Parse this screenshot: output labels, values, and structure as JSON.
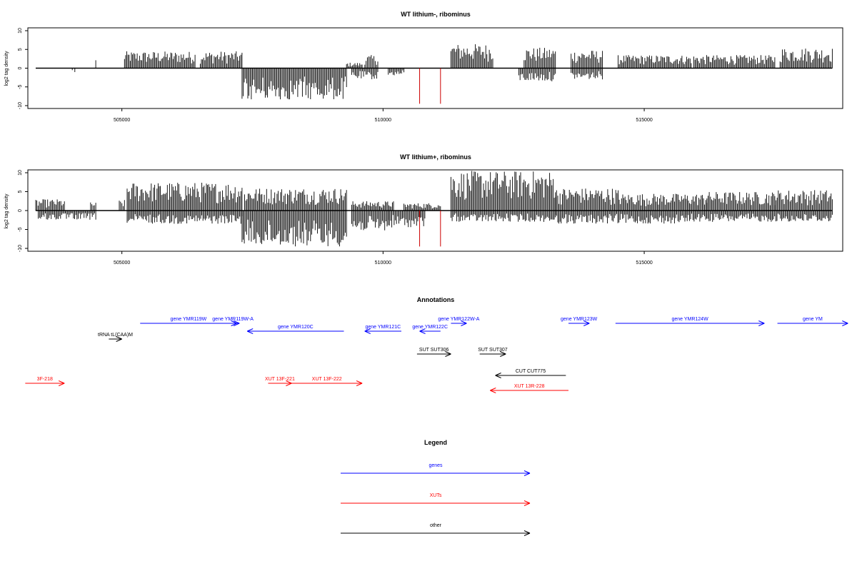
{
  "chart_data": [
    {
      "type": "bar",
      "title": "WT lithium-, ribominus",
      "ylabel": "log2 tag density",
      "xlim": [
        503200,
        518800
      ],
      "ylim": [
        -10,
        10
      ],
      "x_ticks": [
        505000,
        510000,
        515000
      ],
      "y_ticks": [
        -10,
        -5,
        0,
        5,
        10
      ],
      "series": [
        {
          "strand": "plus",
          "color": "#000000",
          "regions": [
            {
              "start": 504500,
              "end": 504500,
              "max": 2.7
            },
            {
              "start": 505050,
              "end": 506400,
              "max": 4.5
            },
            {
              "start": 506500,
              "end": 507300,
              "max": 4.5
            },
            {
              "start": 509300,
              "end": 509600,
              "max": 1.5
            },
            {
              "start": 509650,
              "end": 509900,
              "max": 3.5
            },
            {
              "start": 511300,
              "end": 512100,
              "max": 6.5
            },
            {
              "start": 512700,
              "end": 513300,
              "max": 5.5
            },
            {
              "start": 513600,
              "end": 514200,
              "max": 4.8
            },
            {
              "start": 514500,
              "end": 515900,
              "max": 3.5
            },
            {
              "start": 515950,
              "end": 517500,
              "max": 3.5
            },
            {
              "start": 517600,
              "end": 518600,
              "max": 5.5
            }
          ]
        },
        {
          "strand": "minus",
          "color": "#000000",
          "regions": [
            {
              "start": 504050,
              "end": 504100,
              "min": -1.5
            },
            {
              "start": 507300,
              "end": 509300,
              "min": -8.5
            },
            {
              "start": 509400,
              "end": 509900,
              "min": -3.0
            },
            {
              "start": 510100,
              "end": 510400,
              "min": -2.0
            },
            {
              "start": 512600,
              "end": 513300,
              "min": -3.5
            },
            {
              "start": 513600,
              "end": 514200,
              "min": -3.0
            }
          ]
        },
        {
          "strand": "minus",
          "color": "#cc0000",
          "spikes": [
            {
              "x": 510700,
              "value": -9.5
            },
            {
              "x": 511100,
              "value": -9.5
            }
          ]
        }
      ]
    },
    {
      "type": "bar",
      "title": "WT lithium+, ribominus",
      "ylabel": "log2 tag density",
      "xlim": [
        503200,
        518800
      ],
      "ylim": [
        -10,
        10
      ],
      "x_ticks": [
        505000,
        510000,
        515000
      ],
      "y_ticks": [
        -10,
        -5,
        0,
        5,
        10
      ],
      "series": [
        {
          "strand": "plus",
          "color": "#000000",
          "regions": [
            {
              "start": 503350,
              "end": 503900,
              "max": 3.0
            },
            {
              "start": 504400,
              "end": 504500,
              "max": 2.2
            },
            {
              "start": 504950,
              "end": 505050,
              "max": 2.8
            },
            {
              "start": 505100,
              "end": 507300,
              "max": 7.5
            },
            {
              "start": 507350,
              "end": 509300,
              "max": 6.0
            },
            {
              "start": 509400,
              "end": 510200,
              "max": 2.5
            },
            {
              "start": 510400,
              "end": 511100,
              "max": 2.0
            },
            {
              "start": 511300,
              "end": 513300,
              "max": 10.5
            },
            {
              "start": 513300,
              "end": 514500,
              "max": 6.0
            },
            {
              "start": 514500,
              "end": 516200,
              "max": 4.5
            },
            {
              "start": 516200,
              "end": 517500,
              "max": 5.0
            },
            {
              "start": 517500,
              "end": 518600,
              "max": 5.5
            }
          ]
        },
        {
          "strand": "minus",
          "color": "#000000",
          "regions": [
            {
              "start": 503400,
              "end": 504500,
              "min": -2.5
            },
            {
              "start": 505100,
              "end": 507300,
              "min": -3.5
            },
            {
              "start": 507300,
              "end": 509300,
              "min": -9.5
            },
            {
              "start": 509400,
              "end": 510100,
              "min": -5.5
            },
            {
              "start": 510100,
              "end": 510800,
              "min": -4.5
            },
            {
              "start": 511300,
              "end": 513300,
              "min": -3.0
            },
            {
              "start": 513300,
              "end": 515800,
              "min": -3.5
            },
            {
              "start": 515800,
              "end": 518600,
              "min": -3.0
            }
          ]
        },
        {
          "strand": "minus",
          "color": "#cc0000",
          "spikes": [
            {
              "x": 510700,
              "value": -9.5
            },
            {
              "x": 511100,
              "value": -9.5
            }
          ]
        }
      ]
    }
  ],
  "annotations": {
    "title": "Annotations",
    "features": [
      {
        "label": "gene YMR119W",
        "start": 505350,
        "end": 507200,
        "strand": "+",
        "type": "gene",
        "row": 0
      },
      {
        "label": "gene YMR119W-A",
        "start": 507000,
        "end": 507250,
        "strand": "+",
        "type": "gene",
        "row": 0
      },
      {
        "label": "gene YMR120C",
        "start": 507400,
        "end": 509250,
        "strand": "-",
        "type": "gene",
        "row": 1
      },
      {
        "label": "gene YMR121C",
        "start": 509650,
        "end": 510350,
        "strand": "-",
        "type": "gene",
        "row": 1
      },
      {
        "label": "gene YMR122C",
        "start": 510700,
        "end": 511100,
        "strand": "-",
        "type": "gene",
        "row": 1
      },
      {
        "label": "gene YMR122W-A",
        "start": 511300,
        "end": 511600,
        "strand": "+",
        "type": "gene",
        "row": 0
      },
      {
        "label": "gene YMR123W",
        "start": 513550,
        "end": 513950,
        "strand": "+",
        "type": "gene",
        "row": 0
      },
      {
        "label": "gene YMR124W",
        "start": 514450,
        "end": 517300,
        "strand": "+",
        "type": "gene",
        "row": 0
      },
      {
        "label": "gene YM",
        "start": 517550,
        "end": 518900,
        "strand": "+",
        "type": "gene",
        "row": 0
      },
      {
        "label": "tRNA tL(CAA)M",
        "start": 504750,
        "end": 505000,
        "strand": "+",
        "type": "other",
        "row": 2
      },
      {
        "label": "SUT SUT306",
        "start": 510650,
        "end": 511300,
        "strand": "+",
        "type": "other",
        "row": 3
      },
      {
        "label": "SUT SUT307",
        "start": 511850,
        "end": 512350,
        "strand": "+",
        "type": "other",
        "row": 3
      },
      {
        "label": "CUT CUT775",
        "start": 512150,
        "end": 513500,
        "strand": "-",
        "type": "other",
        "row": 4
      },
      {
        "label": "3F-218",
        "start": 503150,
        "end": 503900,
        "strand": "+",
        "type": "xut",
        "row": 5
      },
      {
        "label": "XUT 13F-221",
        "start": 507800,
        "end": 508250,
        "strand": "+",
        "type": "xut",
        "row": 5
      },
      {
        "label": "XUT 13F-222",
        "start": 508250,
        "end": 509600,
        "strand": "+",
        "type": "xut",
        "row": 5
      },
      {
        "label": "XUT 13R-228",
        "start": 512050,
        "end": 513550,
        "strand": "-",
        "type": "xut",
        "row": 6
      }
    ]
  },
  "legend": {
    "title": "Legend",
    "items": [
      {
        "label": "genes",
        "type": "gene"
      },
      {
        "label": "XUTs",
        "type": "xut"
      },
      {
        "label": "other",
        "type": "other"
      }
    ]
  },
  "colors": {
    "gene": "#0000ff",
    "xut": "#ff0000",
    "other": "#000000",
    "spike": "#cc0000"
  }
}
